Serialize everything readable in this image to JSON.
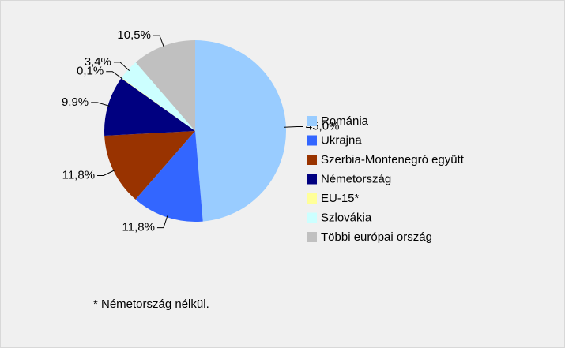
{
  "chart_data": {
    "type": "pie",
    "categories": [
      "Románia",
      "Ukrajna",
      "Szerbia-Montenegró együtt",
      "Németország",
      "EU-15*",
      "Szlovákia",
      "Többi európai ország"
    ],
    "values": [
      45.0,
      11.8,
      11.8,
      9.9,
      0.1,
      3.4,
      10.5
    ],
    "value_labels": [
      "45,0%",
      "11,8%",
      "11,8%",
      "9,9%",
      "0,1%",
      "3,4%",
      "10,5%"
    ],
    "colors": [
      "#99ccff",
      "#3366ff",
      "#993300",
      "#000080",
      "#ffff99",
      "#ccffff",
      "#c0c0c0"
    ],
    "legend": "right",
    "note": "* Németország nélkül."
  }
}
